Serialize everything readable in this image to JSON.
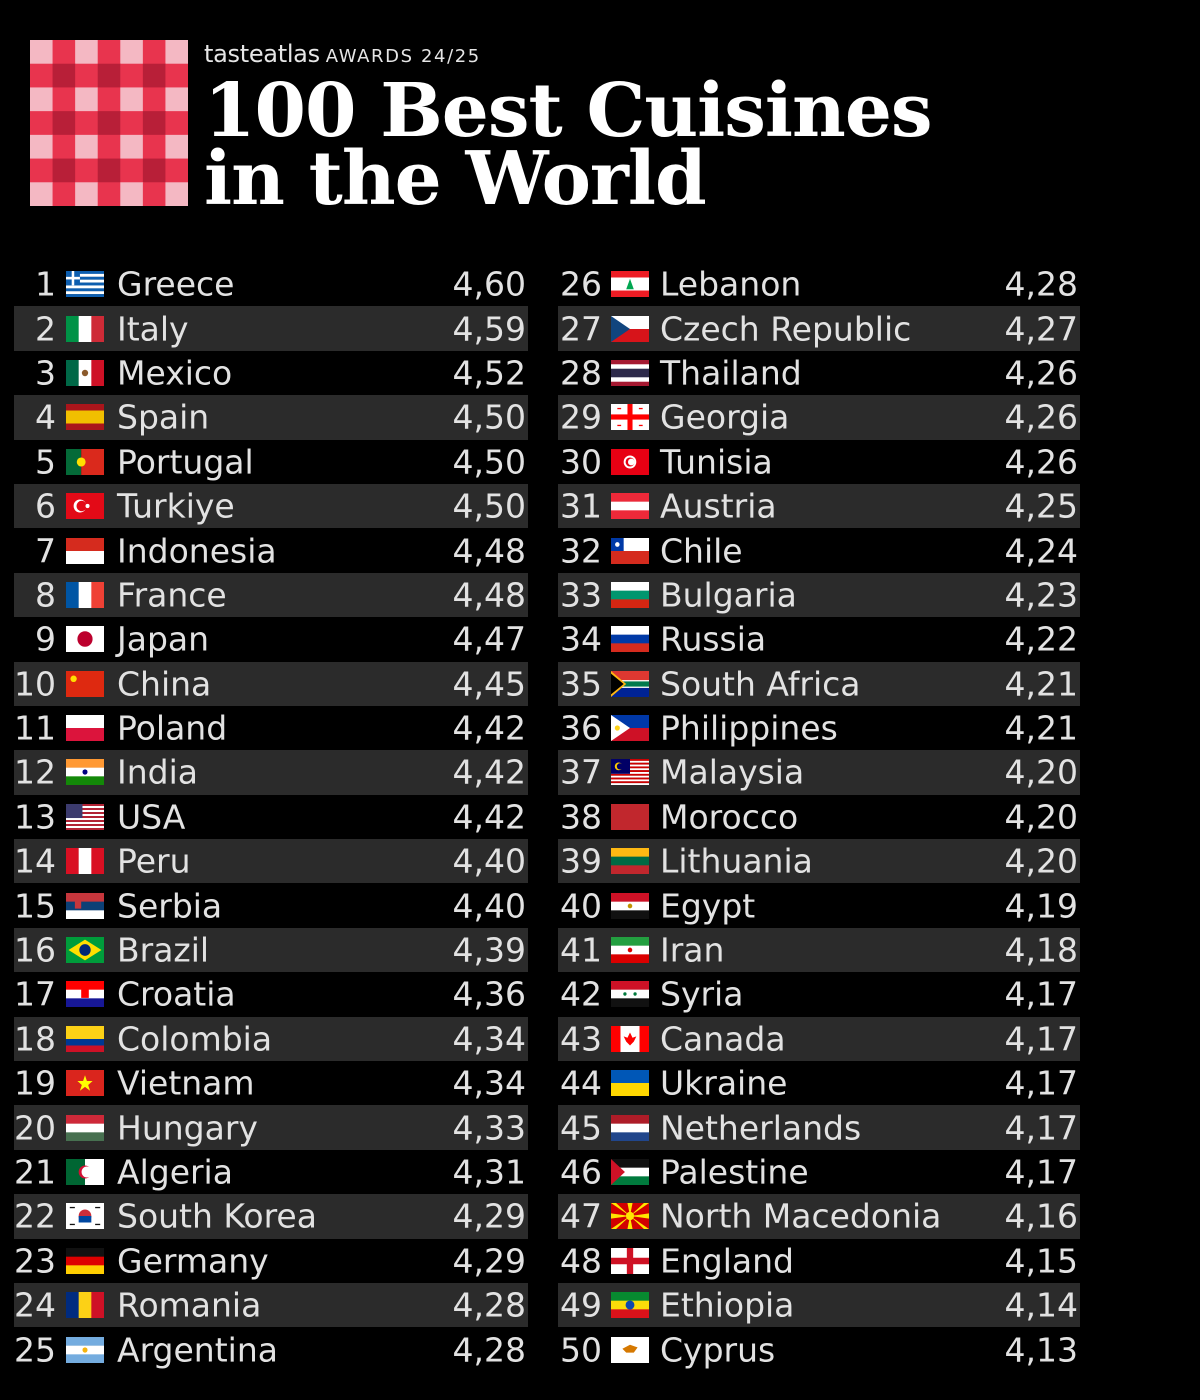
{
  "header": {
    "brand": "tasteatlas",
    "award": "AWARDS 24/25",
    "title_line1": "100 Best Cuisines",
    "title_line2": "in the World"
  },
  "colors": {
    "background": "#000000",
    "row_shade": "#2b2b2b",
    "text": "#e2e2e2",
    "title": "#ffffff",
    "logo_red": "#e8344e",
    "logo_light": "#f4b8c3"
  },
  "chart_data": {
    "type": "table",
    "columns": [
      "rank",
      "flag",
      "country",
      "score"
    ],
    "rows": [
      {
        "rank": "1",
        "country": "Greece",
        "score": "4,60",
        "flag": "greece-flag-icon"
      },
      {
        "rank": "2",
        "country": "Italy",
        "score": "4,59",
        "flag": "italy-flag-icon"
      },
      {
        "rank": "3",
        "country": "Mexico",
        "score": "4,52",
        "flag": "mexico-flag-icon"
      },
      {
        "rank": "4",
        "country": "Spain",
        "score": "4,50",
        "flag": "spain-flag-icon"
      },
      {
        "rank": "5",
        "country": "Portugal",
        "score": "4,50",
        "flag": "portugal-flag-icon"
      },
      {
        "rank": "6",
        "country": "Turkiye",
        "score": "4,50",
        "flag": "turkiye-flag-icon"
      },
      {
        "rank": "7",
        "country": "Indonesia",
        "score": "4,48",
        "flag": "indonesia-flag-icon"
      },
      {
        "rank": "8",
        "country": "France",
        "score": "4,48",
        "flag": "france-flag-icon"
      },
      {
        "rank": "9",
        "country": "Japan",
        "score": "4,47",
        "flag": "japan-flag-icon"
      },
      {
        "rank": "10",
        "country": "China",
        "score": "4,45",
        "flag": "china-flag-icon"
      },
      {
        "rank": "11",
        "country": "Poland",
        "score": "4,42",
        "flag": "poland-flag-icon"
      },
      {
        "rank": "12",
        "country": "India",
        "score": "4,42",
        "flag": "india-flag-icon"
      },
      {
        "rank": "13",
        "country": "USA",
        "score": "4,42",
        "flag": "usa-flag-icon"
      },
      {
        "rank": "14",
        "country": "Peru",
        "score": "4,40",
        "flag": "peru-flag-icon"
      },
      {
        "rank": "15",
        "country": "Serbia",
        "score": "4,40",
        "flag": "serbia-flag-icon"
      },
      {
        "rank": "16",
        "country": "Brazil",
        "score": "4,39",
        "flag": "brazil-flag-icon"
      },
      {
        "rank": "17",
        "country": "Croatia",
        "score": "4,36",
        "flag": "croatia-flag-icon"
      },
      {
        "rank": "18",
        "country": "Colombia",
        "score": "4,34",
        "flag": "colombia-flag-icon"
      },
      {
        "rank": "19",
        "country": "Vietnam",
        "score": "4,34",
        "flag": "vietnam-flag-icon"
      },
      {
        "rank": "20",
        "country": "Hungary",
        "score": "4,33",
        "flag": "hungary-flag-icon"
      },
      {
        "rank": "21",
        "country": "Algeria",
        "score": "4,31",
        "flag": "algeria-flag-icon"
      },
      {
        "rank": "22",
        "country": "South Korea",
        "score": "4,29",
        "flag": "south-korea-flag-icon"
      },
      {
        "rank": "23",
        "country": "Germany",
        "score": "4,29",
        "flag": "germany-flag-icon"
      },
      {
        "rank": "24",
        "country": "Romania",
        "score": "4,28",
        "flag": "romania-flag-icon"
      },
      {
        "rank": "25",
        "country": "Argentina",
        "score": "4,28",
        "flag": "argentina-flag-icon"
      },
      {
        "rank": "26",
        "country": "Lebanon",
        "score": "4,28",
        "flag": "lebanon-flag-icon"
      },
      {
        "rank": "27",
        "country": "Czech Republic",
        "score": "4,27",
        "flag": "czech-republic-flag-icon"
      },
      {
        "rank": "28",
        "country": "Thailand",
        "score": "4,26",
        "flag": "thailand-flag-icon"
      },
      {
        "rank": "29",
        "country": "Georgia",
        "score": "4,26",
        "flag": "georgia-flag-icon"
      },
      {
        "rank": "30",
        "country": "Tunisia",
        "score": "4,26",
        "flag": "tunisia-flag-icon"
      },
      {
        "rank": "31",
        "country": "Austria",
        "score": "4,25",
        "flag": "austria-flag-icon"
      },
      {
        "rank": "32",
        "country": "Chile",
        "score": "4,24",
        "flag": "chile-flag-icon"
      },
      {
        "rank": "33",
        "country": "Bulgaria",
        "score": "4,23",
        "flag": "bulgaria-flag-icon"
      },
      {
        "rank": "34",
        "country": "Russia",
        "score": "4,22",
        "flag": "russia-flag-icon"
      },
      {
        "rank": "35",
        "country": "South Africa",
        "score": "4,21",
        "flag": "south-africa-flag-icon"
      },
      {
        "rank": "36",
        "country": "Philippines",
        "score": "4,21",
        "flag": "philippines-flag-icon"
      },
      {
        "rank": "37",
        "country": "Malaysia",
        "score": "4,20",
        "flag": "malaysia-flag-icon"
      },
      {
        "rank": "38",
        "country": "Morocco",
        "score": "4,20",
        "flag": "morocco-flag-icon"
      },
      {
        "rank": "39",
        "country": "Lithuania",
        "score": "4,20",
        "flag": "lithuania-flag-icon"
      },
      {
        "rank": "40",
        "country": "Egypt",
        "score": "4,19",
        "flag": "egypt-flag-icon"
      },
      {
        "rank": "41",
        "country": "Iran",
        "score": "4,18",
        "flag": "iran-flag-icon"
      },
      {
        "rank": "42",
        "country": "Syria",
        "score": "4,17",
        "flag": "syria-flag-icon"
      },
      {
        "rank": "43",
        "country": "Canada",
        "score": "4,17",
        "flag": "canada-flag-icon"
      },
      {
        "rank": "44",
        "country": "Ukraine",
        "score": "4,17",
        "flag": "ukraine-flag-icon"
      },
      {
        "rank": "45",
        "country": "Netherlands",
        "score": "4,17",
        "flag": "netherlands-flag-icon"
      },
      {
        "rank": "46",
        "country": "Palestine",
        "score": "4,17",
        "flag": "palestine-flag-icon"
      },
      {
        "rank": "47",
        "country": "North Macedonia",
        "score": "4,16",
        "flag": "north-macedonia-flag-icon"
      },
      {
        "rank": "48",
        "country": "England",
        "score": "4,15",
        "flag": "england-flag-icon"
      },
      {
        "rank": "49",
        "country": "Ethiopia",
        "score": "4,14",
        "flag": "ethiopia-flag-icon"
      },
      {
        "rank": "50",
        "country": "Cyprus",
        "score": "4,13",
        "flag": "cyprus-flag-icon"
      }
    ]
  }
}
